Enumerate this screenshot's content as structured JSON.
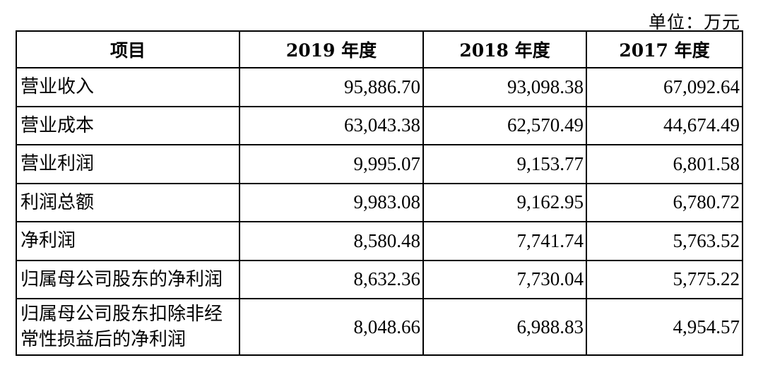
{
  "unit_label": "单位：万元",
  "table": {
    "headers": [
      "项目",
      "2019 年度",
      "2018 年度",
      "2017 年度"
    ],
    "rows": [
      {
        "label": "营业收入",
        "values": [
          "95,886.70",
          "93,098.38",
          "67,092.64"
        ]
      },
      {
        "label": "营业成本",
        "values": [
          "63,043.38",
          "62,570.49",
          "44,674.49"
        ]
      },
      {
        "label": "营业利润",
        "values": [
          "9,995.07",
          "9,153.77",
          "6,801.58"
        ]
      },
      {
        "label": "利润总额",
        "values": [
          "9,983.08",
          "9,162.95",
          "6,780.72"
        ]
      },
      {
        "label": "净利润",
        "values": [
          "8,580.48",
          "7,741.74",
          "5,763.52"
        ]
      },
      {
        "label": "归属母公司股东的净利润",
        "values": [
          "8,632.36",
          "7,730.04",
          "5,775.22"
        ]
      },
      {
        "label_line1": "归属母公司股东扣除非经",
        "label_line2": "常性损益后的净利润",
        "values": [
          "8,048.66",
          "6,988.83",
          "4,954.57"
        ]
      }
    ]
  }
}
